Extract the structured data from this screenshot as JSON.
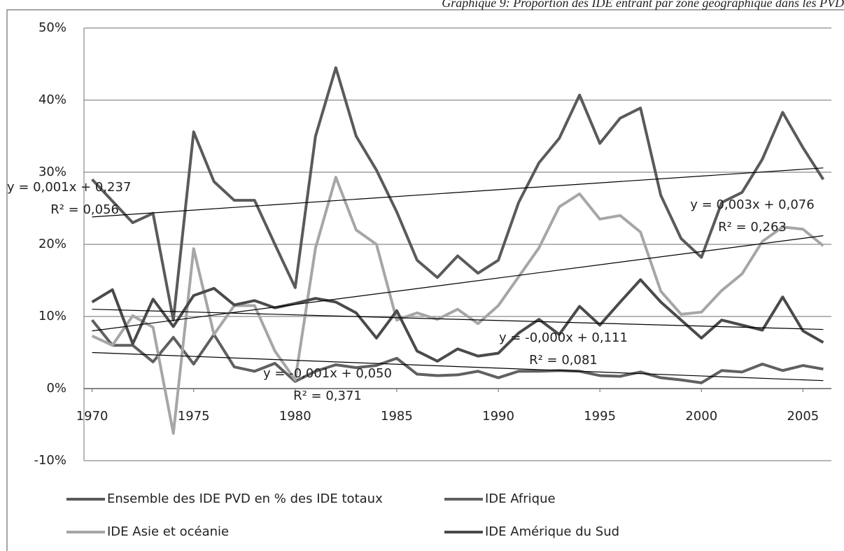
{
  "chart_data": {
    "type": "line",
    "title": "Graphique 9: Proportion des IDE entrant par zone géographique dans les PVD",
    "x": [
      1970,
      1971,
      1972,
      1973,
      1974,
      1975,
      1976,
      1977,
      1978,
      1979,
      1980,
      1981,
      1982,
      1983,
      1984,
      1985,
      1986,
      1987,
      1988,
      1989,
      1990,
      1991,
      1992,
      1993,
      1994,
      1995,
      1996,
      1997,
      1998,
      1999,
      2000,
      2001,
      2002,
      2003,
      2004,
      2005,
      2006
    ],
    "xlim": [
      1969.6,
      2006.4
    ],
    "xticks": [
      1970,
      1975,
      1980,
      1985,
      1990,
      1995,
      2000,
      2005
    ],
    "ylim": [
      -10,
      50
    ],
    "yticks": [
      {
        "value": -10,
        "label": "-10%"
      },
      {
        "value": 0,
        "label": "0%"
      },
      {
        "value": 10,
        "label": "10%"
      },
      {
        "value": 20,
        "label": "20%"
      },
      {
        "value": 30,
        "label": "30%"
      },
      {
        "value": 40,
        "label": "40%"
      },
      {
        "value": 50,
        "label": "50%"
      }
    ],
    "grid": true,
    "series": [
      {
        "name": "Ensemble des IDE PVD en % des IDE totaux",
        "color": "#5a5a5a",
        "values": [
          29,
          26,
          23,
          24.3,
          9.5,
          35.6,
          28.7,
          26.1,
          26.1,
          20,
          14,
          35,
          44.5,
          35,
          30.3,
          24.5,
          17.8,
          15.4,
          18.4,
          16,
          17.8,
          25.8,
          31.3,
          34.7,
          40.7,
          34,
          37.5,
          38.9,
          26.8,
          20.8,
          18.2,
          25.8,
          27.2,
          31.8,
          38.3,
          33.4,
          29
        ]
      },
      {
        "name": "IDE Afrique",
        "color": "#606060",
        "values": [
          9.5,
          6,
          6,
          3.7,
          7.1,
          3.4,
          7.5,
          3,
          2.4,
          3.5,
          1,
          2.4,
          3.3,
          2.9,
          3.2,
          4.2,
          2,
          1.8,
          1.9,
          2.4,
          1.5,
          2.4,
          2.4,
          2.5,
          2.4,
          1.8,
          1.7,
          2.3,
          1.5,
          1.2,
          0.8,
          2.5,
          2.3,
          3.4,
          2.5,
          3.2,
          2.7
        ]
      },
      {
        "name": "IDE Asie et océanie",
        "color": "#a6a6a6",
        "values": [
          7.3,
          6,
          10.1,
          8.5,
          -6.2,
          19.4,
          7.5,
          11.5,
          11.5,
          5.2,
          1.2,
          19.5,
          29.3,
          22,
          20,
          9.5,
          10.5,
          9.6,
          11,
          9,
          11.5,
          15.5,
          19.5,
          25.2,
          27,
          23.5,
          24,
          21.7,
          13.5,
          10.3,
          10.6,
          13.6,
          15.9,
          20.4,
          22.4,
          22.1,
          19.8
        ]
      },
      {
        "name": "IDE Amérique du Sud",
        "color": "#4a4a4a",
        "values": [
          12,
          13.7,
          6.2,
          12.4,
          8.6,
          12.9,
          13.9,
          11.6,
          12.2,
          11.2,
          11.8,
          12.5,
          12,
          10.5,
          7,
          10.8,
          5.2,
          3.8,
          5.5,
          4.5,
          4.9,
          7.7,
          9.6,
          7.5,
          11.4,
          8.8,
          12,
          15.1,
          12,
          9.5,
          7,
          9.5,
          8.8,
          8.1,
          12.7,
          8,
          6.4
        ]
      }
    ],
    "trendlines": [
      {
        "color": "#000000",
        "x": [
          1970,
          2006
        ],
        "values": [
          23.8,
          30.6
        ],
        "equation": "y = 0,001x + 0,237",
        "r2": "R² = 0,056"
      },
      {
        "color": "#000000",
        "x": [
          1970,
          2006
        ],
        "values": [
          8,
          21.2
        ],
        "equation": "y = 0,003x + 0,076",
        "r2": "R² = 0,263"
      },
      {
        "color": "#000000",
        "x": [
          1970,
          2006
        ],
        "values": [
          11,
          8.2
        ],
        "equation": "y = -0,000x + 0,111",
        "r2": "R² = 0,081"
      },
      {
        "color": "#000000",
        "x": [
          1970,
          2006
        ],
        "values": [
          5,
          1.1
        ],
        "equation": "y = -0,001x + 0,050",
        "r2": "R² = 0,371"
      }
    ]
  }
}
